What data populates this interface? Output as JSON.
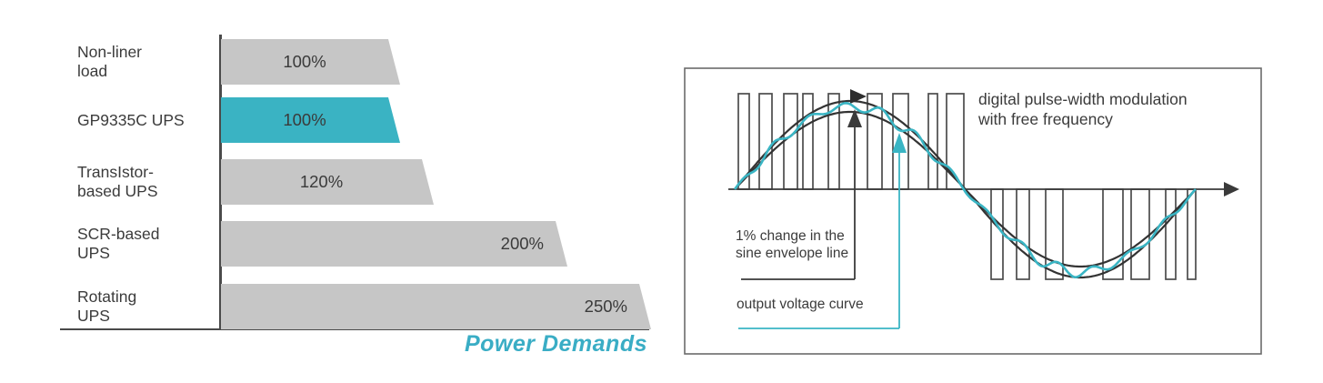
{
  "bar_chart": {
    "caption": "Power Demands"
  },
  "chart_data": {
    "type": "bar",
    "orientation": "horizontal",
    "title": "",
    "xlabel": "Power Demands",
    "unit": "%",
    "xlim": [
      0,
      260
    ],
    "grid": false,
    "legend": false,
    "categories": [
      "Non-liner load",
      "GP9335C UPS",
      "TransIstor-based UPS",
      "SCR-based UPS",
      "Rotating UPS"
    ],
    "category_display": [
      "Non-liner\nload",
      "GP9335C UPS",
      "TransIstor-\nbased UPS",
      "SCR-based\nUPS",
      "Rotating\nUPS"
    ],
    "values": [
      100,
      100,
      120,
      200,
      250
    ],
    "value_labels": [
      "100%",
      "100%",
      "120%",
      "200%",
      "250%"
    ],
    "value_label_align": [
      "center",
      "center",
      "center",
      "right",
      "right"
    ],
    "highlighted_index": 1,
    "highlighted_category": "GP9335C UPS",
    "bar_color": "#c6c6c6",
    "highlight_color": "#3ab3c3"
  },
  "diagram": {
    "title": "digital pulse-width modulation\nwith free frequency",
    "envelope_label": "1% change in the\nsine envelope line",
    "output_label": "output voltage curve",
    "curve_color": "#3ab5c4",
    "line_color": "#3a3a3a"
  }
}
